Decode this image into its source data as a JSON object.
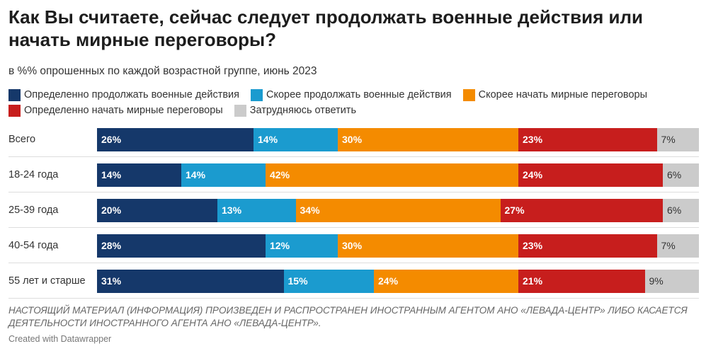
{
  "header": {
    "title": "Как Вы считаете, сейчас следует продолжать военные действия или начать мирные переговоры?",
    "subtitle": "в %% опрошенных по каждой возрастной группе, июнь 2023"
  },
  "legend": [
    {
      "label": "Определенно продолжать военные действия",
      "color": "#15386a"
    },
    {
      "label": "Скорее продолжать военные действия",
      "color": "#1b9bcf"
    },
    {
      "label": "Скорее начать мирные переговоры",
      "color": "#f48b00"
    },
    {
      "label": "Определенно начать мирные переговоры",
      "color": "#c71e1d"
    },
    {
      "label": "Затрудняюсь ответить",
      "color": "#cbcbcb"
    }
  ],
  "chart_data": {
    "type": "bar",
    "orientation": "horizontal",
    "stacked": true,
    "categories": [
      "Всего",
      "18-24 года",
      "25-39 года",
      "40-54 года",
      "55 лет и старше"
    ],
    "series": [
      {
        "name": "Определенно продолжать военные действия",
        "values": [
          26,
          14,
          20,
          28,
          31
        ],
        "labels": [
          "26%",
          "14%",
          "20%",
          "28%",
          "31%"
        ]
      },
      {
        "name": "Скорее продолжать военные действия",
        "values": [
          14,
          14,
          13,
          12,
          15
        ],
        "labels": [
          "14%",
          "14%",
          "13%",
          "12%",
          "15%"
        ]
      },
      {
        "name": "Скорее начать мирные переговоры",
        "values": [
          30,
          42,
          34,
          30,
          24
        ],
        "labels": [
          "30%",
          "42%",
          "34%",
          "30%",
          "24%"
        ]
      },
      {
        "name": "Определенно начать мирные переговоры",
        "values": [
          23,
          24,
          27,
          23,
          21
        ],
        "labels": [
          "23%",
          "24%",
          "27%",
          "23%",
          "21%"
        ]
      },
      {
        "name": "Затрудняюсь ответить",
        "values": [
          7,
          6,
          6,
          7,
          9
        ],
        "labels": [
          "7%",
          "6%",
          "6%",
          "7%",
          "9%"
        ]
      }
    ],
    "colors": [
      "#15386a",
      "#1b9bcf",
      "#f48b00",
      "#c71e1d",
      "#cbcbcb"
    ]
  },
  "footer": {
    "notice": "НАСТОЯЩИЙ МАТЕРИАЛ (ИНФОРМАЦИЯ) ПРОИЗВЕДЕН И РАСПРОСТРАНЕН ИНОСТРАННЫМ АГЕНТОМ АНО «ЛЕВАДА-ЦЕНТР» ЛИБО КАСАЕТСЯ ДЕЯТЕЛЬНОСТИ ИНОСТРАННОГО АГЕНТА АНО «ЛЕВАДА-ЦЕНТР».",
    "credit": "Created with Datawrapper"
  }
}
